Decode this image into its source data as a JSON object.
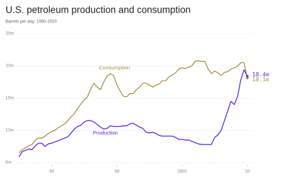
{
  "chart_data": {
    "type": "line",
    "title": "U.S. petroleum production and consumption",
    "subtitle": "Barrels per day; 1950-2020",
    "x": [
      1950,
      1951,
      1952,
      1953,
      1954,
      1955,
      1956,
      1957,
      1958,
      1959,
      1960,
      1961,
      1962,
      1963,
      1964,
      1965,
      1966,
      1967,
      1968,
      1969,
      1970,
      1971,
      1972,
      1973,
      1974,
      1975,
      1976,
      1977,
      1978,
      1979,
      1980,
      1981,
      1982,
      1983,
      1984,
      1985,
      1986,
      1987,
      1988,
      1989,
      1990,
      1991,
      1992,
      1993,
      1994,
      1995,
      1996,
      1997,
      1998,
      1999,
      2000,
      2001,
      2002,
      2003,
      2004,
      2005,
      2006,
      2007,
      2008,
      2009,
      2010,
      2011,
      2012,
      2013,
      2014,
      2015,
      2016,
      2017,
      2018,
      2019,
      2020
    ],
    "series": [
      {
        "name": "Consumption",
        "color": "#a8924a",
        "values": [
          6.5,
          7.0,
          7.3,
          7.6,
          7.8,
          8.5,
          8.8,
          8.8,
          9.1,
          9.5,
          9.8,
          10.0,
          10.4,
          10.7,
          11.0,
          11.5,
          12.1,
          12.6,
          13.4,
          14.1,
          14.7,
          15.2,
          16.4,
          17.3,
          16.7,
          16.3,
          17.5,
          18.4,
          18.8,
          18.5,
          17.1,
          16.1,
          15.3,
          15.2,
          15.7,
          15.7,
          16.3,
          16.7,
          17.3,
          17.3,
          17.0,
          16.7,
          17.0,
          17.2,
          17.7,
          17.7,
          18.3,
          18.6,
          18.9,
          19.5,
          19.7,
          19.6,
          19.8,
          20.0,
          20.7,
          20.8,
          20.7,
          20.7,
          19.5,
          18.8,
          19.2,
          18.9,
          18.5,
          19.0,
          19.1,
          19.5,
          19.7,
          19.9,
          20.5,
          20.5,
          18.1
        ],
        "value_labels": [
          null,
          null,
          null,
          null,
          null,
          null,
          null,
          null,
          null,
          null,
          null,
          null,
          null,
          null,
          null,
          null,
          null,
          null,
          null,
          null,
          null,
          null,
          null,
          null,
          null,
          null,
          null,
          null,
          null,
          null,
          null,
          null,
          null,
          null,
          null,
          null,
          null,
          null,
          null,
          null,
          null,
          null,
          null,
          null,
          null,
          null,
          null,
          null,
          null,
          null,
          null,
          null,
          null,
          null,
          null,
          null,
          null,
          null,
          null,
          null,
          null,
          null,
          null,
          null,
          null,
          null,
          null,
          null,
          null,
          null,
          "18.1m"
        ]
      },
      {
        "name": "Production",
        "color": "#5a2fe0",
        "values": [
          5.9,
          6.7,
          6.9,
          7.1,
          7.0,
          7.6,
          8.0,
          8.0,
          7.5,
          7.9,
          8.0,
          8.2,
          8.4,
          8.6,
          8.8,
          9.0,
          9.6,
          10.2,
          10.6,
          10.8,
          11.3,
          11.5,
          11.5,
          11.3,
          10.9,
          10.5,
          10.2,
          10.3,
          10.7,
          10.6,
          10.6,
          10.6,
          10.7,
          10.7,
          11.0,
          11.1,
          10.8,
          10.5,
          10.3,
          9.7,
          9.6,
          9.7,
          9.5,
          9.2,
          9.1,
          9.1,
          9.1,
          9.1,
          8.9,
          8.6,
          8.6,
          8.5,
          8.5,
          8.3,
          8.1,
          7.9,
          7.8,
          7.8,
          7.8,
          7.8,
          8.9,
          9.3,
          10.0,
          11.5,
          13.0,
          14.5,
          14.0,
          15.2,
          17.8,
          19.4,
          18.4
        ],
        "value_labels": [
          null,
          null,
          null,
          null,
          null,
          null,
          null,
          null,
          null,
          null,
          null,
          null,
          null,
          null,
          null,
          null,
          null,
          null,
          null,
          null,
          null,
          null,
          null,
          null,
          null,
          null,
          null,
          null,
          null,
          null,
          null,
          null,
          null,
          null,
          null,
          null,
          null,
          null,
          null,
          null,
          null,
          null,
          null,
          null,
          null,
          null,
          null,
          null,
          null,
          null,
          null,
          null,
          null,
          null,
          null,
          null,
          null,
          null,
          null,
          null,
          null,
          null,
          null,
          null,
          null,
          null,
          null,
          null,
          null,
          null,
          "18.4m"
        ]
      }
    ],
    "xlim": [
      1950,
      2020
    ],
    "xticks": [
      {
        "value": 1960,
        "label": "'60"
      },
      {
        "value": 1980,
        "label": "'80"
      },
      {
        "value": 2000,
        "label": "2000"
      },
      {
        "value": 2020,
        "label": "'20"
      }
    ],
    "ylim": [
      5,
      25
    ],
    "yticks": [
      {
        "value": 5,
        "label": "5m"
      },
      {
        "value": 10,
        "label": "10m"
      },
      {
        "value": 15,
        "label": "15m"
      },
      {
        "value": 20,
        "label": "20m"
      },
      {
        "value": 25,
        "label": "25m"
      }
    ],
    "grid": true
  }
}
